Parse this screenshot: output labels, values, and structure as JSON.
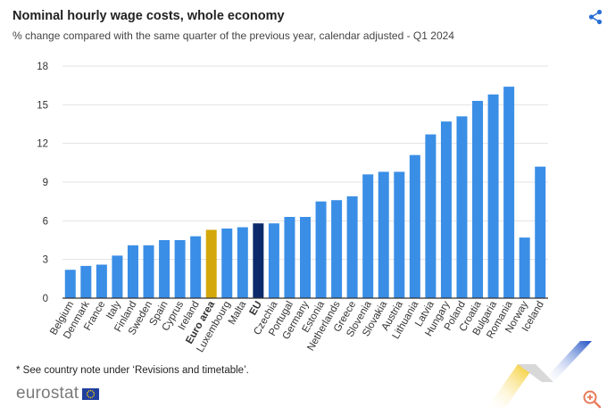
{
  "header": {
    "title": "Nominal hourly wage costs, whole economy",
    "subtitle": "% change compared with the same quarter of the previous year, calendar adjusted - Q1 2024"
  },
  "footer": {
    "note": "* See country note under ‘Revisions and timetable’.",
    "logo_text": "eurostat"
  },
  "icons": {
    "share": "share-icon",
    "zoom": "zoom-in-icon",
    "flag": "eu-flag-icon"
  },
  "colors": {
    "bar": "#3a8ee6",
    "euro_area": "#d4a80c",
    "eu": "#0c2a6b",
    "grid": "#e3e3e3",
    "axis": "#333333",
    "share_icon": "#2a6fd6",
    "zoom_icon": "#e87a5a"
  },
  "chart_data": {
    "type": "bar",
    "title": "Nominal hourly wage costs, whole economy",
    "subtitle": "% change compared with the same quarter of the previous year, calendar adjusted - Q1 2024",
    "xlabel": "",
    "ylabel": "",
    "ylim": [
      0,
      18
    ],
    "yticks": [
      0,
      3,
      6,
      9,
      12,
      15,
      18
    ],
    "grid": true,
    "categories": [
      "Belgium",
      "Denmark",
      "France",
      "Italy",
      "Finland",
      "Sweden",
      "Spain",
      "Cyprus",
      "Ireland",
      "Euro area",
      "Luxembourg",
      "Malta",
      "EU",
      "Czechia",
      "Portugal",
      "Germany",
      "Estonia",
      "Netherlands",
      "Greece",
      "Slovenia",
      "Slovakia",
      "Austria",
      "Lithuania",
      "Latvia",
      "Hungary",
      "Poland",
      "Croatia",
      "Bulgaria",
      "Romania",
      "Norway",
      "Iceland"
    ],
    "values": [
      2.2,
      2.5,
      2.6,
      3.3,
      4.1,
      4.1,
      4.5,
      4.5,
      4.8,
      5.3,
      5.4,
      5.5,
      5.8,
      5.8,
      6.3,
      6.3,
      7.5,
      7.6,
      7.9,
      9.6,
      9.8,
      9.8,
      11.1,
      12.7,
      13.7,
      14.1,
      15.3,
      15.8,
      16.4,
      4.7,
      10.2
    ],
    "highlight": {
      "Euro area": "euro_area",
      "EU": "eu"
    },
    "bold_labels": [
      "Euro area",
      "EU"
    ],
    "gap_after": "Romania"
  }
}
